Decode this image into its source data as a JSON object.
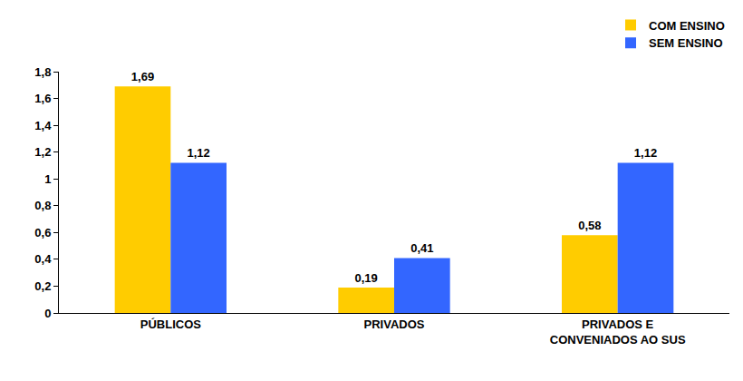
{
  "chart_data": {
    "type": "bar",
    "categories": [
      "PÚBLICOS",
      "PRIVADOS",
      "PRIVADOS E CONVENIADOS AO SUS"
    ],
    "series": [
      {
        "name": "COM ENSINO",
        "color": "#FFCC00",
        "values": [
          1.69,
          0.19,
          0.58
        ],
        "value_labels": [
          "1,69",
          "0,19",
          "0,58"
        ]
      },
      {
        "name": "SEM ENSINO",
        "color": "#3366FF",
        "values": [
          1.12,
          0.41,
          1.12
        ],
        "value_labels": [
          "1,12",
          "0,41",
          "1,12"
        ]
      }
    ],
    "ylim": [
      0,
      1.8
    ],
    "yticks": [
      0,
      {
        "value": 0.2,
        "label": "0,2"
      },
      {
        "value": 0.4,
        "label": "0,4"
      },
      {
        "value": 0.6,
        "label": "0,6"
      },
      {
        "value": 0.8,
        "label": "0,8"
      },
      1,
      {
        "value": 1.2,
        "label": "1,2"
      },
      {
        "value": 1.4,
        "label": "1,4"
      },
      {
        "value": 1.6,
        "label": "1,6"
      },
      {
        "value": 1.8,
        "label": "1,8"
      }
    ],
    "grid": false,
    "legend": "top-right",
    "data_labels": true
  }
}
